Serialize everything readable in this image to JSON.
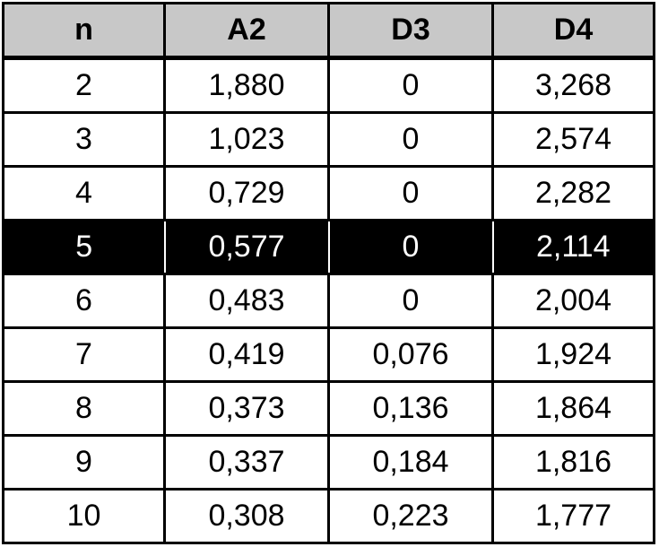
{
  "table": {
    "headers": [
      "n",
      "A2",
      "D3",
      "D4"
    ],
    "highlight_row_index": 3,
    "rows": [
      [
        "2",
        "1,880",
        "0",
        "3,268"
      ],
      [
        "3",
        "1,023",
        "0",
        "2,574"
      ],
      [
        "4",
        "0,729",
        "0",
        "2,282"
      ],
      [
        "5",
        "0,577",
        "0",
        "2,114"
      ],
      [
        "6",
        "0,483",
        "0",
        "2,004"
      ],
      [
        "7",
        "0,419",
        "0,076",
        "1,924"
      ],
      [
        "8",
        "0,373",
        "0,136",
        "1,864"
      ],
      [
        "9",
        "0,337",
        "0,184",
        "1,816"
      ],
      [
        "10",
        "0,308",
        "0,223",
        "1,777"
      ]
    ]
  },
  "colors": {
    "header_bg": "#c8c8c8",
    "highlight_bg": "#000000",
    "highlight_text": "#ffffff",
    "border": "#000000"
  }
}
